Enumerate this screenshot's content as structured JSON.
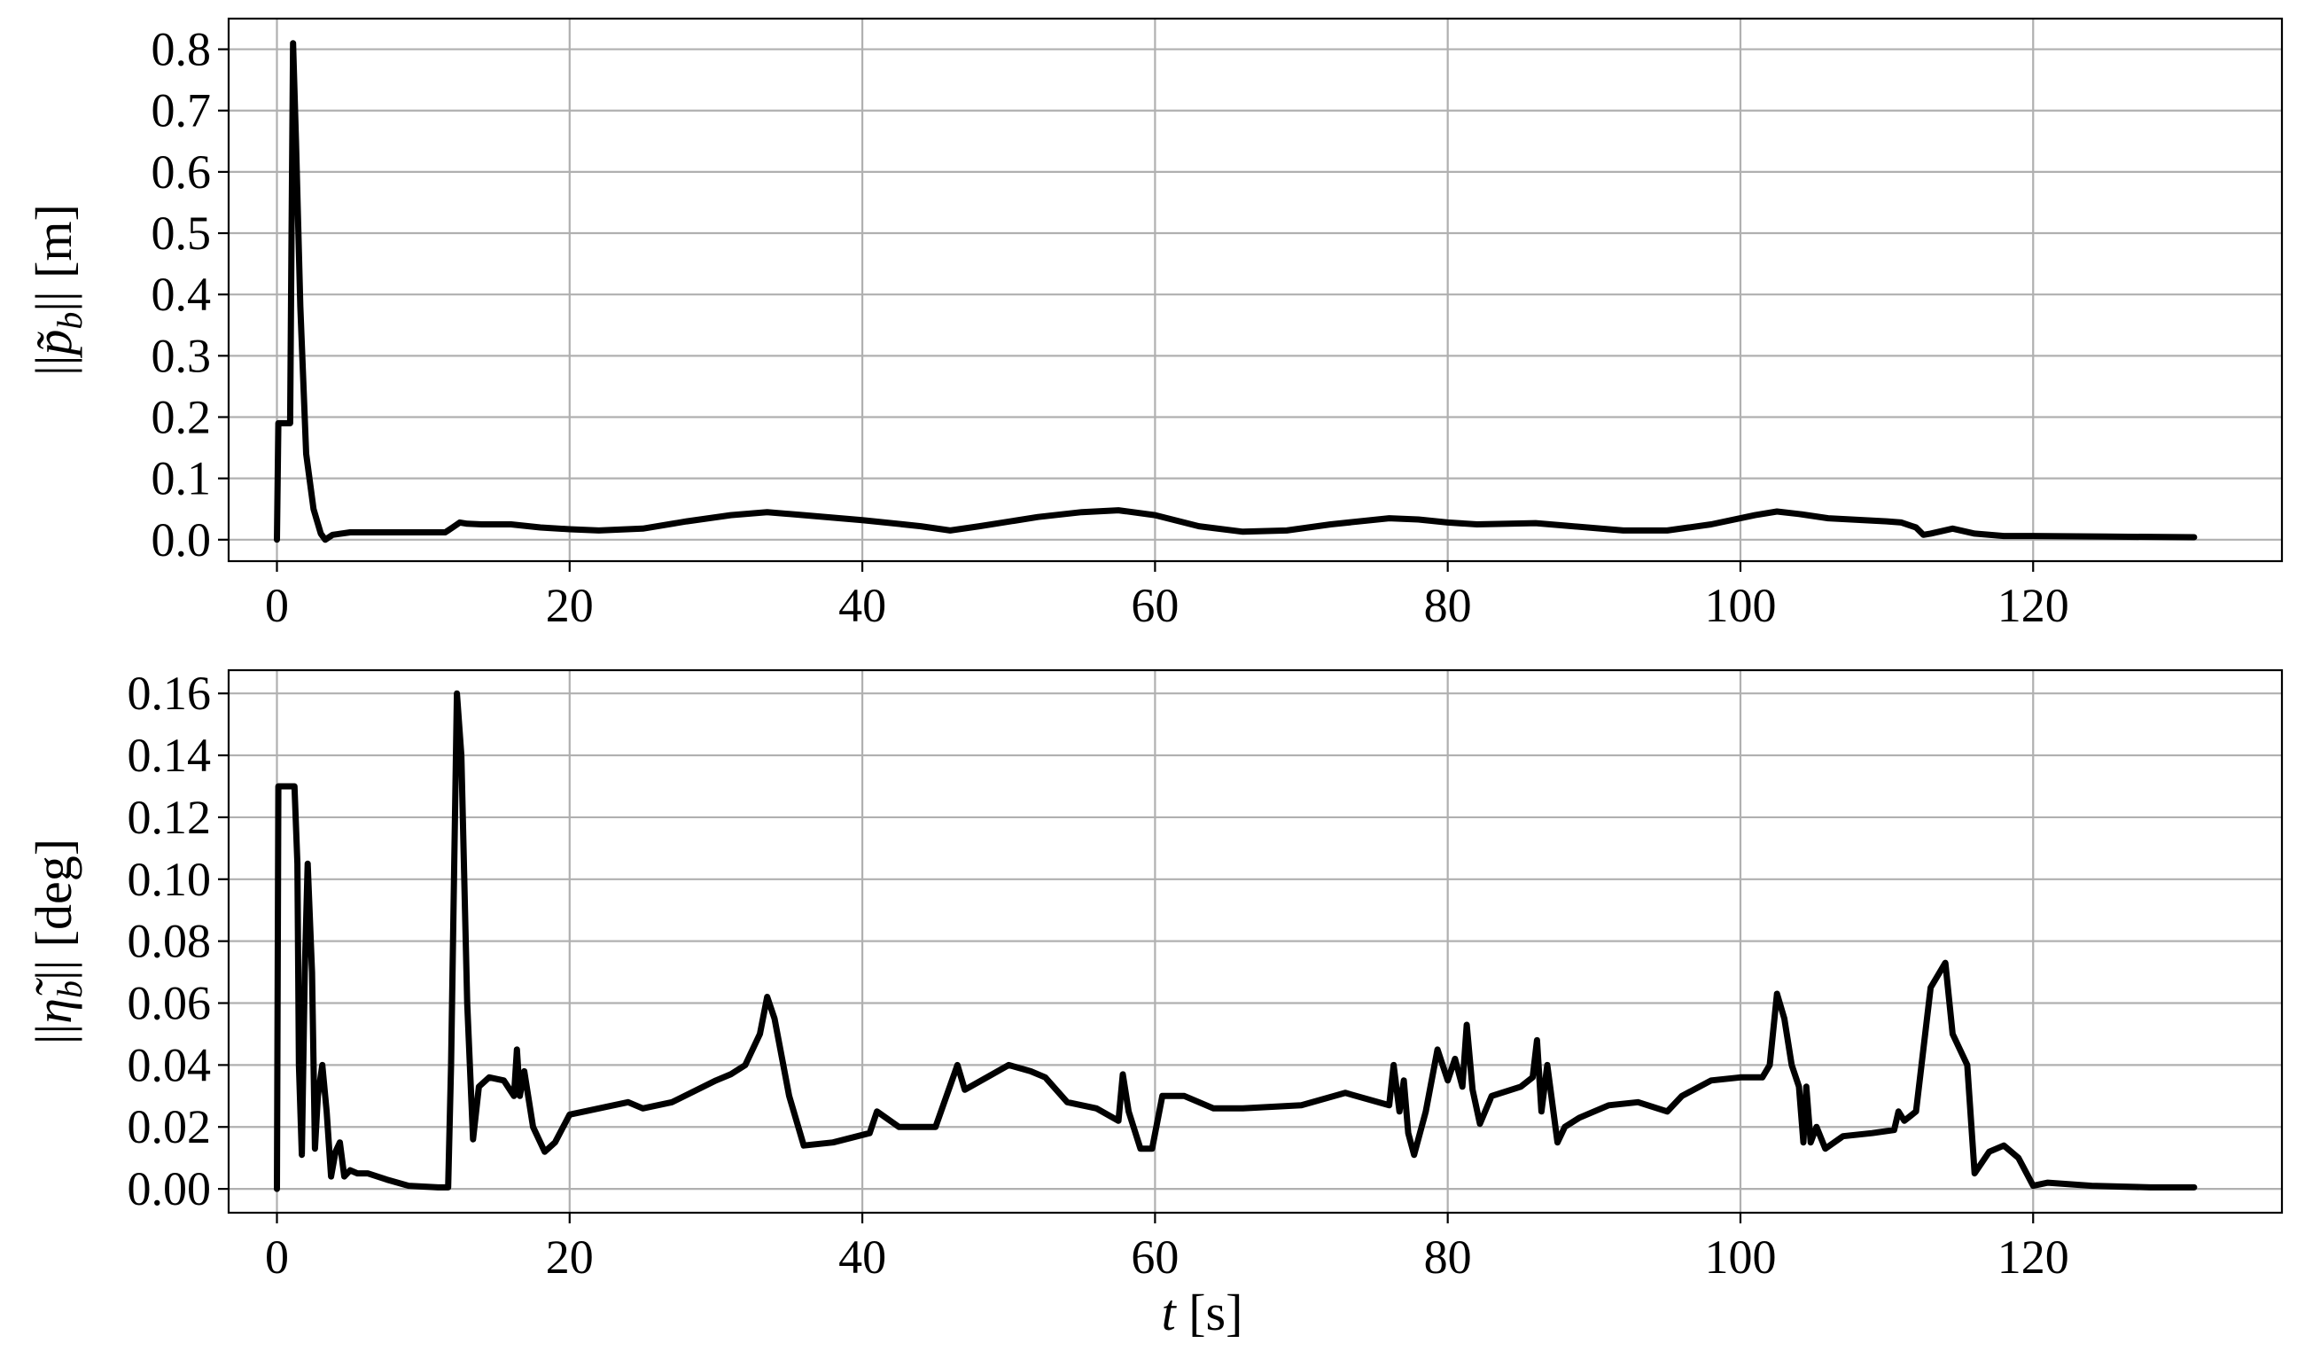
{
  "figure": {
    "background": "#ffffff",
    "line_color": "#000000",
    "grid_color": "#b0b0b0"
  },
  "chart_data": [
    {
      "type": "line",
      "title": "",
      "ylabel": "||p̃_b|| [m]",
      "ylabel_parts": {
        "prefix": "||",
        "symbol": "p̃",
        "subscript": "b",
        "suffix": "|| [m]"
      },
      "xlabel": "",
      "xlim": [
        -3.3,
        137
      ],
      "ylim": [
        -0.035,
        0.85
      ],
      "xticks": [
        0,
        20,
        40,
        60,
        80,
        100,
        120
      ],
      "xtick_labels": [
        "0",
        "20",
        "40",
        "60",
        "80",
        "100",
        "120"
      ],
      "yticks": [
        0.0,
        0.1,
        0.2,
        0.3,
        0.4,
        0.5,
        0.6,
        0.7,
        0.8
      ],
      "ytick_labels": [
        "0.0",
        "0.1",
        "0.2",
        "0.3",
        "0.4",
        "0.5",
        "0.6",
        "0.7",
        "0.8"
      ],
      "grid": true,
      "series": [
        {
          "x": [
            0,
            0.1,
            0.2,
            0.9,
            1.0,
            1.1,
            1.3,
            1.6,
            2.0,
            2.5,
            3.0,
            3.3,
            3.8,
            5,
            8,
            11.5,
            12,
            12.5,
            13,
            14,
            16,
            18,
            20,
            22,
            25,
            28,
            31,
            33.5,
            36,
            40,
            44,
            46,
            48,
            52,
            55,
            57.5,
            60,
            63,
            66,
            69,
            72,
            76,
            78,
            80,
            82,
            86,
            88,
            92,
            95,
            98,
            101,
            102.5,
            104,
            106,
            110,
            111,
            112,
            112.5,
            113,
            114.5,
            116,
            118,
            120,
            125,
            131
          ],
          "y": [
            0,
            0.19,
            0.19,
            0.19,
            0.5,
            0.81,
            0.65,
            0.38,
            0.14,
            0.05,
            0.01,
            0.0,
            0.008,
            0.012,
            0.012,
            0.012,
            0.02,
            0.028,
            0.026,
            0.025,
            0.025,
            0.02,
            0.017,
            0.015,
            0.018,
            0.03,
            0.04,
            0.045,
            0.04,
            0.032,
            0.022,
            0.015,
            0.022,
            0.037,
            0.045,
            0.048,
            0.04,
            0.022,
            0.013,
            0.015,
            0.025,
            0.035,
            0.033,
            0.028,
            0.025,
            0.027,
            0.023,
            0.015,
            0.015,
            0.025,
            0.04,
            0.046,
            0.042,
            0.035,
            0.03,
            0.028,
            0.02,
            0.008,
            0.01,
            0.018,
            0.01,
            0.006,
            0.006,
            0.005,
            0.004
          ]
        }
      ]
    },
    {
      "type": "line",
      "title": "",
      "ylabel": "||η̃_b|| [deg]",
      "ylabel_parts": {
        "prefix": "||",
        "symbol": "η̃",
        "subscript": "b",
        "suffix": "|| [deg]"
      },
      "xlabel": "t [s]",
      "xlabel_parts": {
        "symbol": "t",
        "suffix": " [s]"
      },
      "xlim": [
        -3.3,
        137
      ],
      "ylim": [
        -0.0077,
        0.1675
      ],
      "xticks": [
        0,
        20,
        40,
        60,
        80,
        100,
        120
      ],
      "xtick_labels": [
        "0",
        "20",
        "40",
        "60",
        "80",
        "100",
        "120"
      ],
      "yticks": [
        0.0,
        0.02,
        0.04,
        0.06,
        0.08,
        0.1,
        0.12,
        0.14,
        0.16
      ],
      "ytick_labels": [
        "0.00",
        "0.02",
        "0.04",
        "0.06",
        "0.08",
        "0.10",
        "0.12",
        "0.14",
        "0.16"
      ],
      "grid": true,
      "series": [
        {
          "x": [
            0,
            0.1,
            0.2,
            1.2,
            1.4,
            1.5,
            1.7,
            1.9,
            2.1,
            2.4,
            2.6,
            2.8,
            3.1,
            3.4,
            3.7,
            4.0,
            4.3,
            4.6,
            5,
            5.5,
            6.2,
            7.5,
            9,
            11,
            11.7,
            11.9,
            12.1,
            12.3,
            12.6,
            13.0,
            13.4,
            13.8,
            14.5,
            15.5,
            16.2,
            16.4,
            16.6,
            16.9,
            17.5,
            18.3,
            19,
            20,
            24,
            25,
            27,
            30,
            31,
            32,
            33,
            33.5,
            34,
            35,
            36,
            38,
            40.5,
            41,
            42.5,
            45,
            46.5,
            47,
            50,
            51.5,
            52.5,
            54,
            56,
            57.5,
            57.8,
            58.2,
            59,
            59.8,
            60.5,
            62,
            64,
            66,
            70,
            73,
            76,
            76.3,
            76.7,
            77,
            77.3,
            77.7,
            78.5,
            79.3,
            80,
            80.5,
            81,
            81.3,
            81.7,
            82.2,
            83,
            85,
            85.8,
            86.1,
            86.4,
            86.8,
            87.5,
            88,
            89,
            91,
            93,
            95,
            96,
            98,
            100,
            101.5,
            102,
            102.5,
            103,
            103.5,
            104,
            104.3,
            104.5,
            104.8,
            105.2,
            105.8,
            107,
            109,
            110.5,
            110.8,
            111.2,
            112,
            113,
            114,
            114.5,
            115.5,
            116,
            117,
            118,
            119,
            120,
            121,
            124,
            128,
            131
          ],
          "y": [
            0,
            0.13,
            0.13,
            0.13,
            0.105,
            0.04,
            0.011,
            0.07,
            0.105,
            0.07,
            0.013,
            0.03,
            0.04,
            0.025,
            0.004,
            0.012,
            0.015,
            0.004,
            0.006,
            0.005,
            0.005,
            0.003,
            0.001,
            0.0005,
            0.0005,
            0.04,
            0.1,
            0.16,
            0.14,
            0.06,
            0.016,
            0.033,
            0.036,
            0.035,
            0.03,
            0.045,
            0.03,
            0.038,
            0.02,
            0.012,
            0.015,
            0.024,
            0.028,
            0.026,
            0.028,
            0.035,
            0.037,
            0.04,
            0.05,
            0.062,
            0.055,
            0.03,
            0.014,
            0.015,
            0.018,
            0.025,
            0.02,
            0.02,
            0.04,
            0.032,
            0.04,
            0.038,
            0.036,
            0.028,
            0.026,
            0.022,
            0.037,
            0.025,
            0.013,
            0.013,
            0.03,
            0.03,
            0.026,
            0.026,
            0.027,
            0.031,
            0.027,
            0.04,
            0.025,
            0.035,
            0.018,
            0.011,
            0.025,
            0.045,
            0.035,
            0.042,
            0.033,
            0.053,
            0.032,
            0.021,
            0.03,
            0.033,
            0.036,
            0.048,
            0.025,
            0.04,
            0.015,
            0.02,
            0.023,
            0.027,
            0.028,
            0.025,
            0.03,
            0.035,
            0.036,
            0.036,
            0.04,
            0.063,
            0.055,
            0.04,
            0.033,
            0.015,
            0.033,
            0.015,
            0.02,
            0.013,
            0.017,
            0.018,
            0.019,
            0.025,
            0.022,
            0.025,
            0.065,
            0.073,
            0.05,
            0.04,
            0.005,
            0.012,
            0.014,
            0.01,
            0.001,
            0.002,
            0.001,
            0.0005,
            0.0005
          ]
        }
      ]
    }
  ]
}
